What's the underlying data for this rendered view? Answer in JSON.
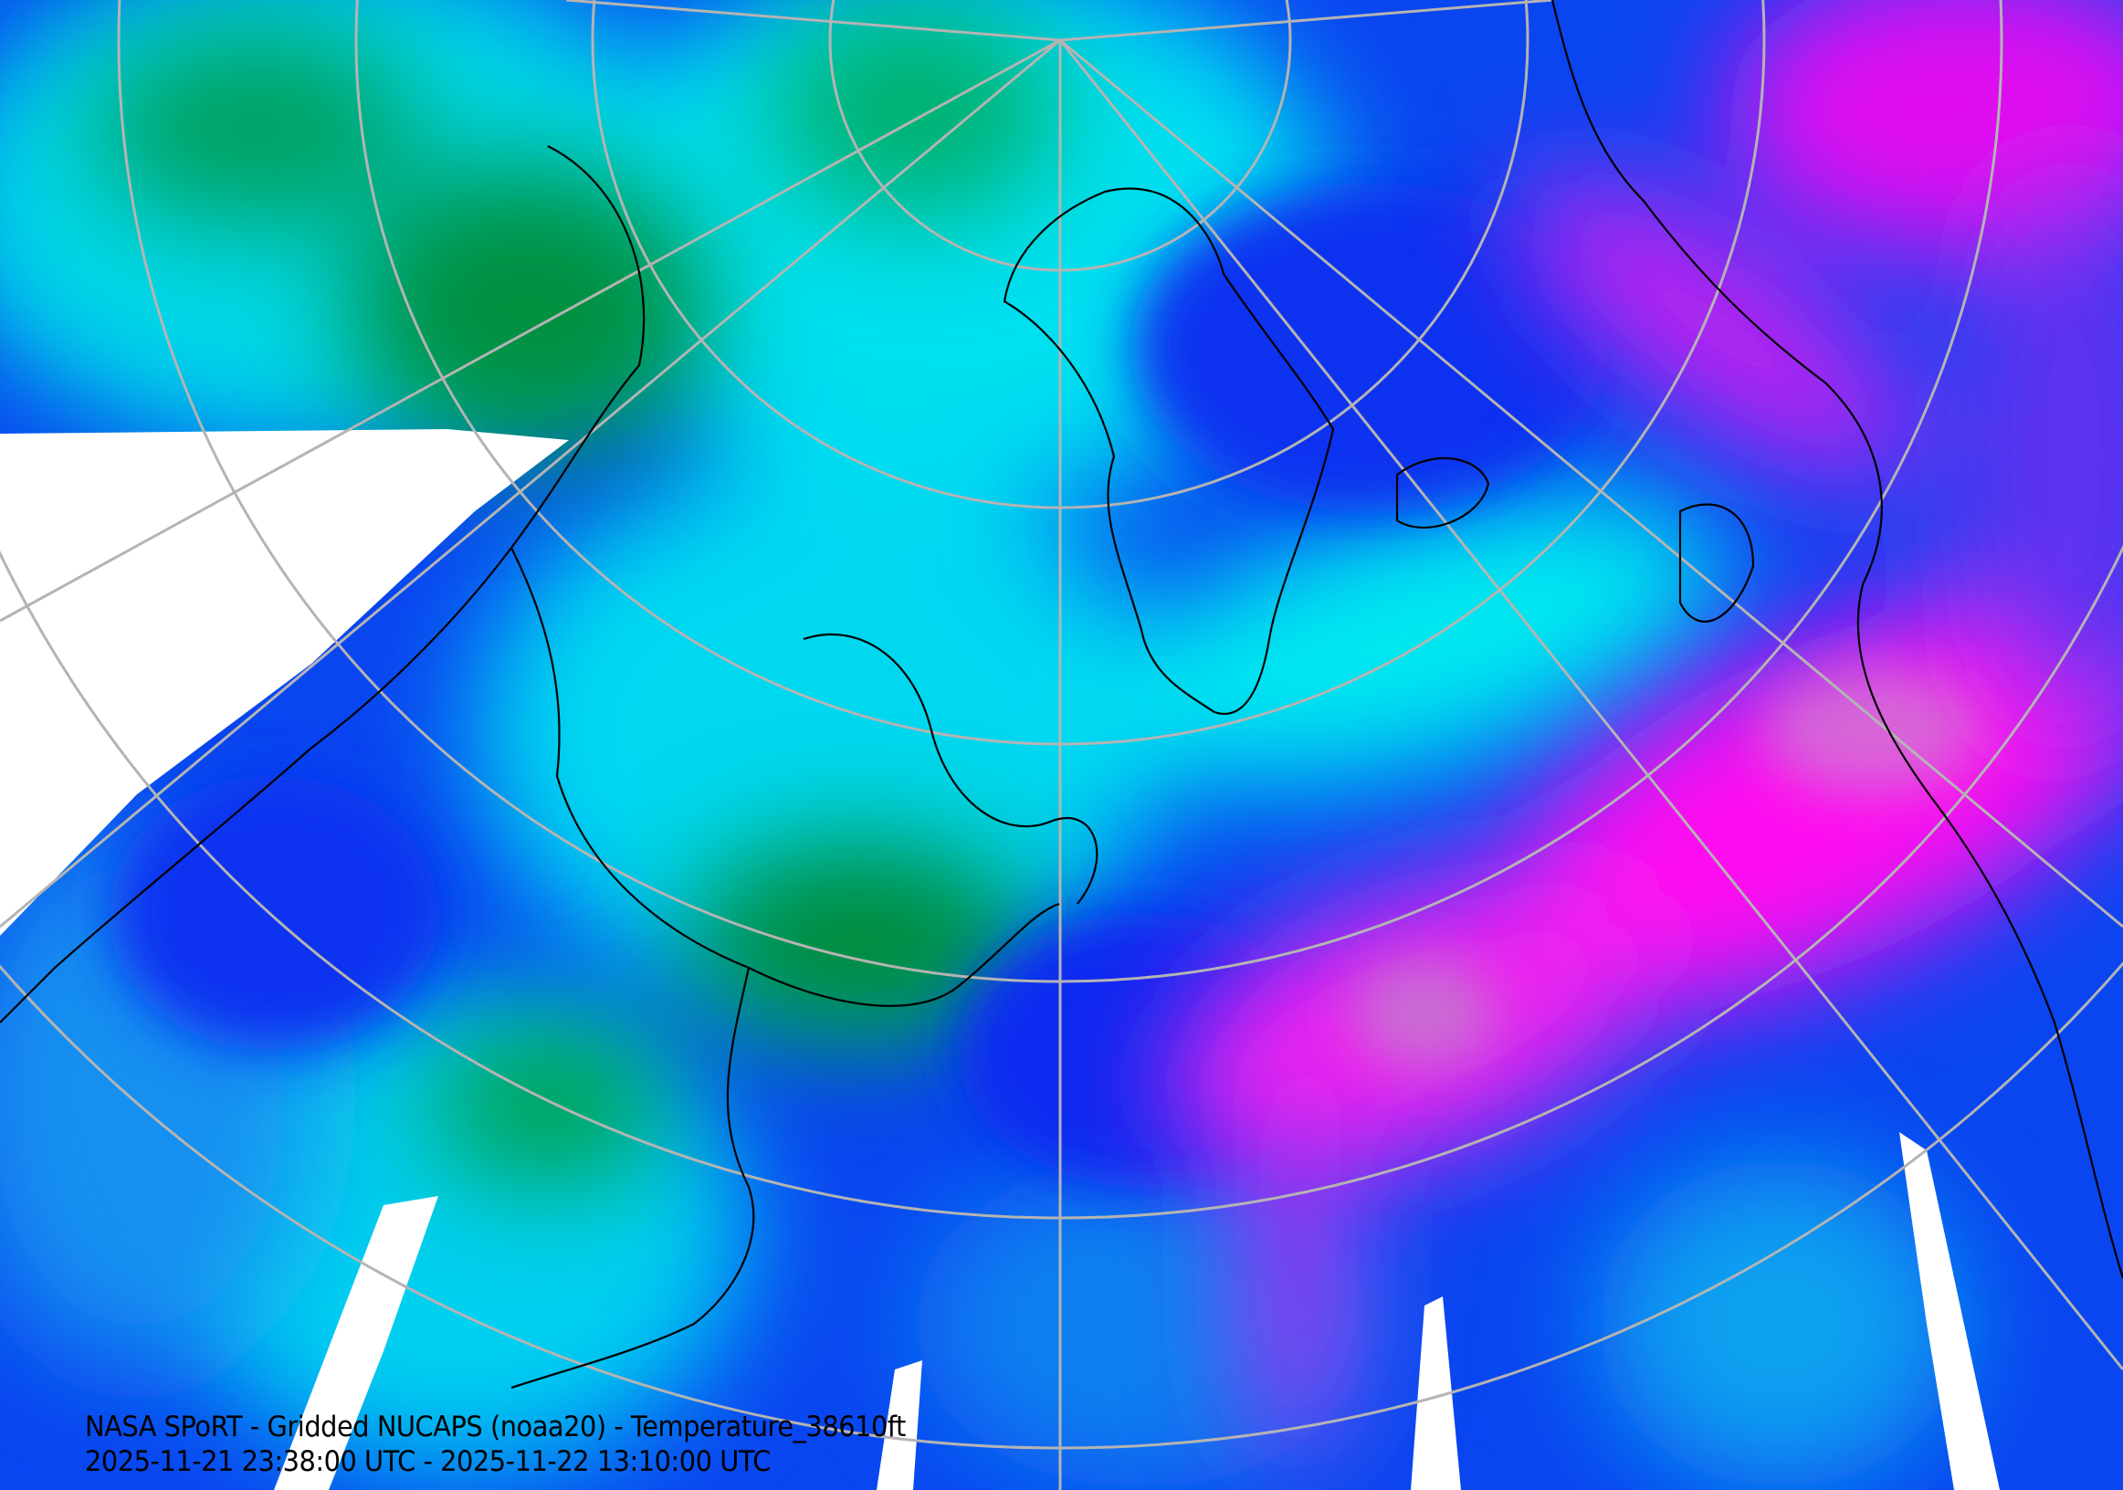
{
  "map": {
    "title": "NASA SPoRT - Gridded NUCAPS (noaa20) - Temperature_38610ft",
    "time_range": "2025-11-21 23:38:00 UTC - 2025-11-22 13:10:00 UTC",
    "colors": {
      "cold_green": "#009a40",
      "cyan": "#00e8f0",
      "blue": "#0a46f0",
      "purple": "#8a22f0",
      "magenta": "#ff10f0",
      "no_data": "#ffffff",
      "graticule": "#b4b4b4",
      "coastline": "#000000"
    }
  }
}
